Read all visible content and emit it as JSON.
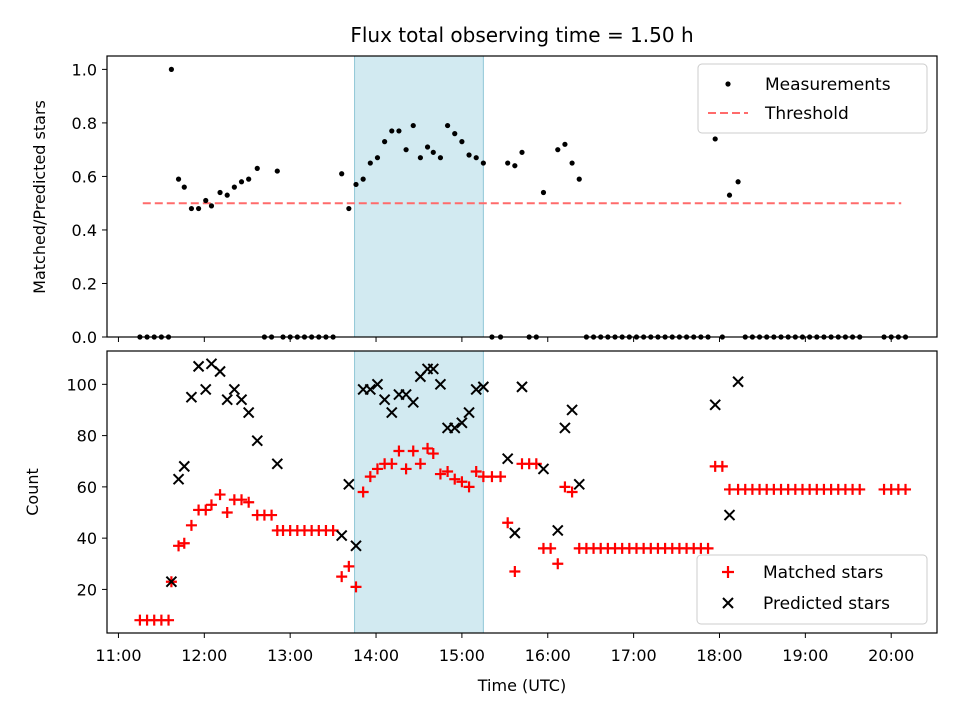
{
  "chart_data": [
    {
      "type": "scatter",
      "title": "Flux total observing time = 1.50 h",
      "xlabel": "",
      "ylabel": "Matched/Predicted stars",
      "xlim": [
        "10:52",
        "20:32"
      ],
      "ylim": [
        0,
        1.05
      ],
      "yticks": [
        "0.0",
        "0.2",
        "0.4",
        "0.6",
        "0.8",
        "1.0"
      ],
      "xticks_shown": false,
      "grid": false,
      "legend_position": "upper right",
      "highlight_span": {
        "start": "13:45",
        "end": "15:15",
        "color": "#add8e6"
      },
      "series": [
        {
          "name": "Measurements",
          "color": "#000000",
          "marker": "dot",
          "points": [
            [
              "11:15",
              0
            ],
            [
              "11:20",
              0
            ],
            [
              "11:25",
              0
            ],
            [
              "11:30",
              0
            ],
            [
              "11:35",
              0
            ],
            [
              "11:37",
              1.0
            ],
            [
              "11:42",
              0.59
            ],
            [
              "11:46",
              0.56
            ],
            [
              "11:51",
              0.48
            ],
            [
              "11:56",
              0.48
            ],
            [
              "12:01",
              0.51
            ],
            [
              "12:05",
              0.49
            ],
            [
              "12:11",
              0.54
            ],
            [
              "12:16",
              0.53
            ],
            [
              "12:21",
              0.56
            ],
            [
              "12:26",
              0.58
            ],
            [
              "12:31",
              0.59
            ],
            [
              "12:37",
              0.63
            ],
            [
              "12:42",
              0
            ],
            [
              "12:47",
              0
            ],
            [
              "12:51",
              0.62
            ],
            [
              "12:55",
              0
            ],
            [
              "13:00",
              0
            ],
            [
              "13:05",
              0
            ],
            [
              "13:10",
              0
            ],
            [
              "13:15",
              0
            ],
            [
              "13:20",
              0
            ],
            [
              "13:25",
              0
            ],
            [
              "13:30",
              0
            ],
            [
              "13:36",
              0.61
            ],
            [
              "13:41",
              0.48
            ],
            [
              "13:46",
              0.57
            ],
            [
              "13:51",
              0.59
            ],
            [
              "13:56",
              0.65
            ],
            [
              "14:01",
              0.67
            ],
            [
              "14:06",
              0.73
            ],
            [
              "14:11",
              0.77
            ],
            [
              "14:16",
              0.77
            ],
            [
              "14:21",
              0.7
            ],
            [
              "14:26",
              0.79
            ],
            [
              "14:31",
              0.67
            ],
            [
              "14:36",
              0.71
            ],
            [
              "14:40",
              0.69
            ],
            [
              "14:45",
              0.67
            ],
            [
              "14:50",
              0.79
            ],
            [
              "14:55",
              0.76
            ],
            [
              "15:00",
              0.73
            ],
            [
              "15:05",
              0.68
            ],
            [
              "15:10",
              0.67
            ],
            [
              "15:15",
              0.65
            ],
            [
              "15:21",
              0
            ],
            [
              "15:27",
              0
            ],
            [
              "15:32",
              0.65
            ],
            [
              "15:37",
              0.64
            ],
            [
              "15:42",
              0.69
            ],
            [
              "15:47",
              0
            ],
            [
              "15:52",
              0
            ],
            [
              "15:57",
              0.54
            ],
            [
              "16:07",
              0.7
            ],
            [
              "16:12",
              0.72
            ],
            [
              "16:17",
              0.65
            ],
            [
              "16:22",
              0.59
            ],
            [
              "16:27",
              0
            ],
            [
              "16:32",
              0
            ],
            [
              "16:37",
              0
            ],
            [
              "16:42",
              0
            ],
            [
              "16:47",
              0
            ],
            [
              "16:52",
              0
            ],
            [
              "16:57",
              0
            ],
            [
              "17:02",
              0
            ],
            [
              "17:07",
              0
            ],
            [
              "17:12",
              0
            ],
            [
              "17:17",
              0
            ],
            [
              "17:22",
              0
            ],
            [
              "17:27",
              0
            ],
            [
              "17:32",
              0
            ],
            [
              "17:37",
              0
            ],
            [
              "17:42",
              0
            ],
            [
              "17:47",
              0
            ],
            [
              "17:52",
              0
            ],
            [
              "17:57",
              0.74
            ],
            [
              "18:02",
              0
            ],
            [
              "18:07",
              0.53
            ],
            [
              "18:13",
              0.58
            ],
            [
              "18:18",
              0
            ],
            [
              "18:23",
              0
            ],
            [
              "18:28",
              0
            ],
            [
              "18:33",
              0
            ],
            [
              "18:38",
              0
            ],
            [
              "18:43",
              0
            ],
            [
              "18:48",
              0
            ],
            [
              "18:53",
              0
            ],
            [
              "18:58",
              0
            ],
            [
              "19:03",
              0
            ],
            [
              "19:08",
              0
            ],
            [
              "19:13",
              0
            ],
            [
              "19:18",
              0
            ],
            [
              "19:23",
              0
            ],
            [
              "19:28",
              0
            ],
            [
              "19:33",
              0
            ],
            [
              "19:38",
              0
            ],
            [
              "19:55",
              0
            ],
            [
              "20:00",
              0
            ],
            [
              "20:05",
              0
            ],
            [
              "20:10",
              0
            ]
          ]
        },
        {
          "name": "Threshold",
          "color": "#ff6b6b",
          "style": "dashed",
          "points": [
            [
              "11:17",
              0.5
            ],
            [
              "20:07",
              0.5
            ]
          ]
        }
      ]
    },
    {
      "type": "scatter",
      "title": "",
      "xlabel": "Time (UTC)",
      "ylabel": "Count",
      "xlim": [
        "10:52",
        "20:32"
      ],
      "ylim": [
        3,
        113
      ],
      "yticks": [
        "20",
        "40",
        "60",
        "80",
        "100"
      ],
      "xticks": [
        "11:00",
        "12:00",
        "13:00",
        "14:00",
        "15:00",
        "16:00",
        "17:00",
        "18:00",
        "19:00",
        "20:00"
      ],
      "grid": false,
      "legend_position": "lower right",
      "highlight_span": {
        "start": "13:45",
        "end": "15:15",
        "color": "#add8e6"
      },
      "series": [
        {
          "name": "Matched stars",
          "color": "#ff0000",
          "marker": "plus",
          "points": [
            [
              "11:15",
              8
            ],
            [
              "11:20",
              8
            ],
            [
              "11:25",
              8
            ],
            [
              "11:30",
              8
            ],
            [
              "11:35",
              8
            ],
            [
              "11:37",
              23
            ],
            [
              "11:42",
              37
            ],
            [
              "11:46",
              38
            ],
            [
              "11:51",
              45
            ],
            [
              "11:56",
              51
            ],
            [
              "12:01",
              51
            ],
            [
              "12:05",
              53
            ],
            [
              "12:11",
              57
            ],
            [
              "12:16",
              50
            ],
            [
              "12:21",
              55
            ],
            [
              "12:26",
              55
            ],
            [
              "12:31",
              54
            ],
            [
              "12:37",
              49
            ],
            [
              "12:42",
              49
            ],
            [
              "12:47",
              49
            ],
            [
              "12:51",
              43
            ],
            [
              "12:55",
              43
            ],
            [
              "13:00",
              43
            ],
            [
              "13:05",
              43
            ],
            [
              "13:10",
              43
            ],
            [
              "13:15",
              43
            ],
            [
              "13:20",
              43
            ],
            [
              "13:25",
              43
            ],
            [
              "13:30",
              43
            ],
            [
              "13:36",
              25
            ],
            [
              "13:41",
              29
            ],
            [
              "13:46",
              21
            ],
            [
              "13:51",
              58
            ],
            [
              "13:56",
              64
            ],
            [
              "14:01",
              67
            ],
            [
              "14:06",
              69
            ],
            [
              "14:11",
              69
            ],
            [
              "14:16",
              74
            ],
            [
              "14:21",
              67
            ],
            [
              "14:26",
              74
            ],
            [
              "14:31",
              69
            ],
            [
              "14:36",
              75
            ],
            [
              "14:40",
              73
            ],
            [
              "14:45",
              65
            ],
            [
              "14:50",
              66
            ],
            [
              "14:55",
              63
            ],
            [
              "15:00",
              62
            ],
            [
              "15:05",
              60
            ],
            [
              "15:10",
              66
            ],
            [
              "15:15",
              64
            ],
            [
              "15:21",
              64
            ],
            [
              "15:27",
              64
            ],
            [
              "15:32",
              46
            ],
            [
              "15:37",
              27
            ],
            [
              "15:42",
              69
            ],
            [
              "15:47",
              69
            ],
            [
              "15:52",
              69
            ],
            [
              "15:57",
              36
            ],
            [
              "16:02",
              36
            ],
            [
              "16:07",
              30
            ],
            [
              "16:12",
              60
            ],
            [
              "16:17",
              58
            ],
            [
              "16:22",
              36
            ],
            [
              "16:27",
              36
            ],
            [
              "16:32",
              36
            ],
            [
              "16:37",
              36
            ],
            [
              "16:42",
              36
            ],
            [
              "16:47",
              36
            ],
            [
              "16:52",
              36
            ],
            [
              "16:57",
              36
            ],
            [
              "17:02",
              36
            ],
            [
              "17:07",
              36
            ],
            [
              "17:12",
              36
            ],
            [
              "17:17",
              36
            ],
            [
              "17:22",
              36
            ],
            [
              "17:27",
              36
            ],
            [
              "17:32",
              36
            ],
            [
              "17:37",
              36
            ],
            [
              "17:42",
              36
            ],
            [
              "17:47",
              36
            ],
            [
              "17:52",
              36
            ],
            [
              "17:57",
              68
            ],
            [
              "18:02",
              68
            ],
            [
              "18:07",
              59
            ],
            [
              "18:13",
              59
            ],
            [
              "18:18",
              59
            ],
            [
              "18:23",
              59
            ],
            [
              "18:28",
              59
            ],
            [
              "18:33",
              59
            ],
            [
              "18:38",
              59
            ],
            [
              "18:43",
              59
            ],
            [
              "18:48",
              59
            ],
            [
              "18:53",
              59
            ],
            [
              "18:58",
              59
            ],
            [
              "19:03",
              59
            ],
            [
              "19:08",
              59
            ],
            [
              "19:13",
              59
            ],
            [
              "19:18",
              59
            ],
            [
              "19:23",
              59
            ],
            [
              "19:28",
              59
            ],
            [
              "19:33",
              59
            ],
            [
              "19:38",
              59
            ],
            [
              "19:55",
              59
            ],
            [
              "20:00",
              59
            ],
            [
              "20:05",
              59
            ],
            [
              "20:10",
              59
            ]
          ]
        },
        {
          "name": "Predicted stars",
          "color": "#000000",
          "marker": "x",
          "points": [
            [
              "11:37",
              23
            ],
            [
              "11:42",
              63
            ],
            [
              "11:46",
              68
            ],
            [
              "11:51",
              95
            ],
            [
              "11:56",
              107
            ],
            [
              "12:01",
              98
            ],
            [
              "12:05",
              108
            ],
            [
              "12:11",
              105
            ],
            [
              "12:16",
              94
            ],
            [
              "12:21",
              98
            ],
            [
              "12:26",
              94
            ],
            [
              "12:31",
              89
            ],
            [
              "12:37",
              78
            ],
            [
              "12:51",
              69
            ],
            [
              "13:36",
              41
            ],
            [
              "13:41",
              61
            ],
            [
              "13:46",
              37
            ],
            [
              "13:51",
              98
            ],
            [
              "13:56",
              98
            ],
            [
              "14:01",
              100
            ],
            [
              "14:06",
              94
            ],
            [
              "14:11",
              89
            ],
            [
              "14:16",
              96
            ],
            [
              "14:21",
              96
            ],
            [
              "14:26",
              93
            ],
            [
              "14:31",
              103
            ],
            [
              "14:36",
              106
            ],
            [
              "14:40",
              106
            ],
            [
              "14:45",
              100
            ],
            [
              "14:50",
              83
            ],
            [
              "14:55",
              83
            ],
            [
              "15:00",
              85
            ],
            [
              "15:05",
              89
            ],
            [
              "15:10",
              98
            ],
            [
              "15:15",
              99
            ],
            [
              "15:32",
              71
            ],
            [
              "15:37",
              42
            ],
            [
              "15:42",
              99
            ],
            [
              "15:57",
              67
            ],
            [
              "16:07",
              43
            ],
            [
              "16:12",
              83
            ],
            [
              "16:17",
              90
            ],
            [
              "16:22",
              61
            ],
            [
              "17:57",
              92
            ],
            [
              "18:07",
              49
            ],
            [
              "18:13",
              101
            ]
          ]
        }
      ]
    }
  ]
}
